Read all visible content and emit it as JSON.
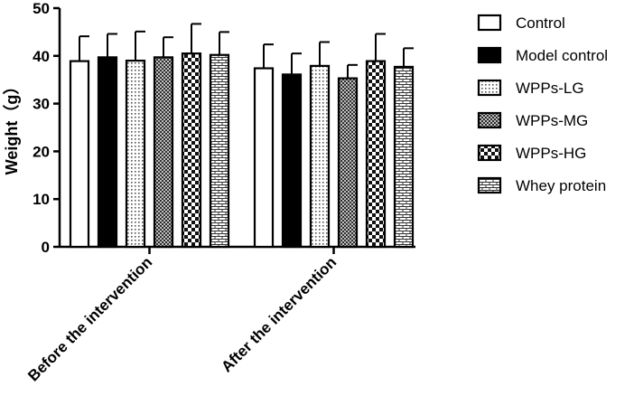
{
  "chart_data": {
    "type": "bar",
    "title": "",
    "xlabel": "",
    "ylabel": "Weight（g）",
    "ylim": [
      0,
      50
    ],
    "yticks": [
      0,
      10,
      20,
      30,
      40,
      50
    ],
    "grid": false,
    "legend_position": "right",
    "error_bars": true,
    "categories": [
      "Before the intervention",
      "After the intervention"
    ],
    "series": [
      {
        "name": "Control",
        "pattern": "white",
        "values": [
          38.9,
          37.4
        ],
        "errors": [
          5.2,
          5.0
        ]
      },
      {
        "name": "Model control",
        "pattern": "black",
        "values": [
          39.7,
          36.1
        ],
        "errors": [
          4.9,
          4.4
        ]
      },
      {
        "name": "WPPs-LG",
        "pattern": "dots",
        "values": [
          39.0,
          37.9
        ],
        "errors": [
          6.1,
          5.0
        ]
      },
      {
        "name": "WPPs-MG",
        "pattern": "cross",
        "values": [
          39.7,
          35.3
        ],
        "errors": [
          4.2,
          2.8
        ]
      },
      {
        "name": "WPPs-HG",
        "pattern": "checker",
        "values": [
          40.5,
          38.9
        ],
        "errors": [
          6.2,
          5.7
        ]
      },
      {
        "name": "Whey protein",
        "pattern": "brick",
        "values": [
          40.2,
          37.7
        ],
        "errors": [
          4.8,
          3.9
        ]
      }
    ]
  }
}
